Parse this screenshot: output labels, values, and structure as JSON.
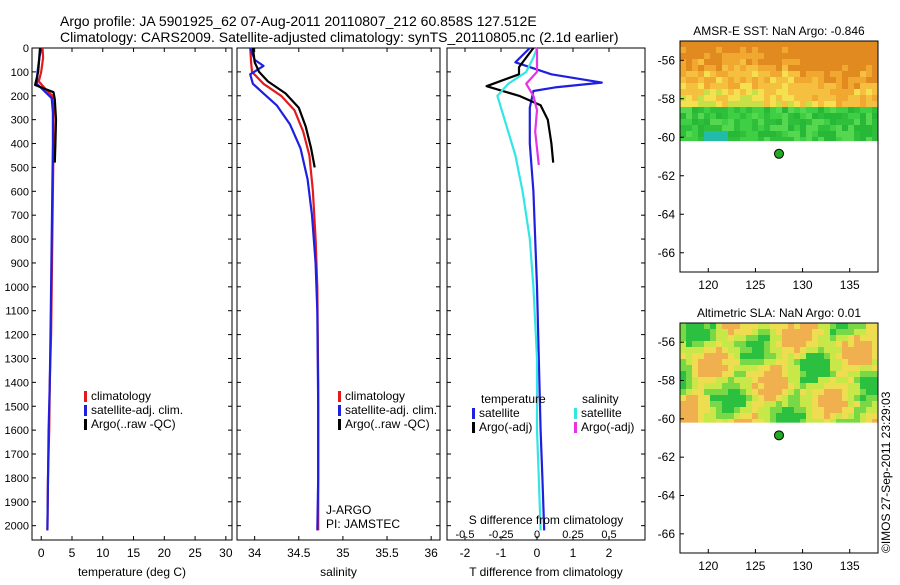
{
  "header": {
    "line1": "Argo profile: JA 5901925_62 07-Aug-2011 20110807_212 60.858S 127.512E",
    "line2": "Climatology: CARS2009. Satellite-adjusted climatology: synTS_20110805.nc (2.1d earlier)"
  },
  "credit": "©IMOS 27-Sep-2011 23:29:03",
  "colors": {
    "climatology": "#e41a1c",
    "satellite": "#1f1fe0",
    "argo": "#000000",
    "sal_satellite": "#33e6e6",
    "sal_argo": "#e633e6"
  },
  "depth_axis": {
    "ticks": [
      0,
      100,
      200,
      300,
      400,
      500,
      600,
      700,
      800,
      900,
      1000,
      1100,
      1200,
      1300,
      1400,
      1500,
      1600,
      1700,
      1800,
      1900,
      2000
    ],
    "range": [
      0,
      2060
    ]
  },
  "chart_data": [
    {
      "id": "temperature",
      "type": "line",
      "xlabel": "temperature (deg C)",
      "xlim": [
        -1.5,
        31
      ],
      "xticks": [
        0,
        5,
        10,
        15,
        20,
        25,
        30
      ],
      "legend": [
        "climatology",
        "satellite-adj. clim.",
        "Argo(..raw -QC)"
      ],
      "series": [
        {
          "name": "climatology",
          "color": "#e41a1c",
          "points": [
            [
              0.2,
              0
            ],
            [
              0.3,
              40
            ],
            [
              0.0,
              100
            ],
            [
              -0.4,
              140
            ],
            [
              0.8,
              175
            ],
            [
              1.8,
              200
            ],
            [
              2.0,
              260
            ],
            [
              2.0,
              400
            ],
            [
              1.9,
              600
            ],
            [
              1.8,
              800
            ],
            [
              1.7,
              1000
            ],
            [
              1.6,
              1200
            ],
            [
              1.4,
              1400
            ],
            [
              1.3,
              1600
            ],
            [
              1.1,
              1800
            ],
            [
              1.0,
              2020
            ]
          ]
        },
        {
          "name": "satellite-adj. clim.",
          "color": "#1f1fe0",
          "points": [
            [
              0.0,
              0
            ],
            [
              -0.3,
              40
            ],
            [
              -0.6,
              100
            ],
            [
              -0.7,
              150
            ],
            [
              0.5,
              180
            ],
            [
              1.7,
              210
            ],
            [
              1.9,
              270
            ],
            [
              1.9,
              400
            ],
            [
              1.8,
              600
            ],
            [
              1.7,
              800
            ],
            [
              1.6,
              1000
            ],
            [
              1.5,
              1200
            ],
            [
              1.4,
              1400
            ],
            [
              1.2,
              1600
            ],
            [
              1.1,
              1800
            ],
            [
              1.0,
              2020
            ]
          ]
        },
        {
          "name": "Argo(..raw -QC)",
          "color": "#000000",
          "points": [
            [
              -0.2,
              0
            ],
            [
              -0.5,
              100
            ],
            [
              -1.0,
              155
            ],
            [
              0.5,
              170
            ],
            [
              2.0,
              185
            ],
            [
              2.2,
              215
            ],
            [
              2.4,
              300
            ],
            [
              2.3,
              400
            ],
            [
              2.2,
              480
            ]
          ]
        }
      ]
    },
    {
      "id": "salinity",
      "type": "line",
      "xlabel": "salinity",
      "xlim": [
        33.8,
        36.1
      ],
      "xticks": [
        34,
        34.5,
        35,
        35.5,
        36
      ],
      "legend": [
        "climatology",
        "satellite-adj. clim.",
        "Argo(..raw -QC)"
      ],
      "annotations": [
        "J-ARGO",
        "PI: JAMSTEC"
      ],
      "series": [
        {
          "name": "climatology",
          "color": "#e41a1c",
          "points": [
            [
              33.95,
              0
            ],
            [
              33.96,
              60
            ],
            [
              33.97,
              100
            ],
            [
              34.1,
              150
            ],
            [
              34.3,
              200
            ],
            [
              34.45,
              260
            ],
            [
              34.55,
              350
            ],
            [
              34.62,
              450
            ],
            [
              34.66,
              600
            ],
            [
              34.69,
              800
            ],
            [
              34.71,
              1000
            ],
            [
              34.72,
              1400
            ],
            [
              34.72,
              1800
            ],
            [
              34.72,
              2020
            ]
          ]
        },
        {
          "name": "satellite-adj. clim.",
          "color": "#1f1fe0",
          "points": [
            [
              33.95,
              0
            ],
            [
              34.0,
              50
            ],
            [
              34.1,
              75
            ],
            [
              33.95,
              110
            ],
            [
              33.98,
              150
            ],
            [
              34.1,
              190
            ],
            [
              34.25,
              240
            ],
            [
              34.4,
              320
            ],
            [
              34.52,
              420
            ],
            [
              34.6,
              550
            ],
            [
              34.65,
              700
            ],
            [
              34.69,
              900
            ],
            [
              34.71,
              1100
            ],
            [
              34.72,
              1500
            ],
            [
              34.72,
              1800
            ],
            [
              34.71,
              2020
            ]
          ]
        },
        {
          "name": "Argo(..raw -QC)",
          "color": "#000000",
          "points": [
            [
              33.98,
              0
            ],
            [
              34.0,
              60
            ],
            [
              34.05,
              100
            ],
            [
              34.15,
              140
            ],
            [
              34.35,
              190
            ],
            [
              34.5,
              250
            ],
            [
              34.58,
              330
            ],
            [
              34.64,
              420
            ],
            [
              34.68,
              500
            ]
          ]
        }
      ]
    },
    {
      "id": "difference",
      "type": "line",
      "xlabel": "T difference from climatology",
      "xlabel_top": "S difference from climatology",
      "xlim": [
        -2.5,
        3
      ],
      "xticks": [
        -2,
        -1,
        0,
        1,
        2
      ],
      "xticks_top": [
        -0.5,
        -0.25,
        0,
        0.25,
        0.5
      ],
      "legend_temperature": [
        "temperature",
        "satellite",
        "Argo(-adj)"
      ],
      "legend_salinity": [
        "salinity",
        "satellite",
        "Argo(-adj)"
      ],
      "series": [
        {
          "name": "temperature satellite",
          "color": "#1f1fe0",
          "points": [
            [
              -0.2,
              0
            ],
            [
              -0.6,
              60
            ],
            [
              0.4,
              110
            ],
            [
              1.8,
              145
            ],
            [
              0.5,
              165
            ],
            [
              -0.1,
              180
            ],
            [
              -0.2,
              250
            ],
            [
              -0.2,
              400
            ],
            [
              -0.1,
              600
            ],
            [
              -0.05,
              800
            ],
            [
              0,
              1000
            ],
            [
              0.05,
              1300
            ],
            [
              0.1,
              1600
            ],
            [
              0.15,
              1800
            ],
            [
              0.2,
              2020
            ]
          ]
        },
        {
          "name": "temperature Argo(-adj)",
          "color": "#000000",
          "points": [
            [
              -0.1,
              0
            ],
            [
              -0.5,
              80
            ],
            [
              -0.5,
              110
            ],
            [
              -1.4,
              160
            ],
            [
              -0.5,
              200
            ],
            [
              0.1,
              240
            ],
            [
              0.3,
              300
            ],
            [
              0.4,
              400
            ],
            [
              0.45,
              480
            ]
          ]
        },
        {
          "name": "salinity satellite",
          "color": "#33e6e6",
          "points": [
            [
              0.0,
              0
            ],
            [
              -0.1,
              40
            ],
            [
              -0.3,
              100
            ],
            [
              -0.8,
              150
            ],
            [
              -1.1,
              200
            ],
            [
              -0.9,
              300
            ],
            [
              -0.6,
              450
            ],
            [
              -0.4,
              600
            ],
            [
              -0.2,
              800
            ],
            [
              -0.1,
              1000
            ],
            [
              0,
              1300
            ],
            [
              0,
              1600
            ],
            [
              0.05,
              1800
            ],
            [
              0.1,
              2020
            ]
          ]
        },
        {
          "name": "salinity Argo(-adj)",
          "color": "#e633e6",
          "points": [
            [
              0.0,
              0
            ],
            [
              0.0,
              100
            ],
            [
              -0.3,
              150
            ],
            [
              -0.1,
              200
            ],
            [
              0.0,
              260
            ],
            [
              -0.05,
              350
            ],
            [
              0.0,
              420
            ],
            [
              0.05,
              490
            ]
          ]
        }
      ]
    },
    {
      "id": "sst_map",
      "type": "heatmap",
      "title": "AMSR-E SST: NaN Argo: -0.846",
      "xticks": [
        120,
        125,
        130,
        135
      ],
      "yticks": [
        -56,
        -58,
        -60,
        -62,
        -64,
        -66
      ],
      "xlim": [
        117,
        138
      ],
      "ylim": [
        -67,
        -55
      ],
      "marker": {
        "lon": 127.5,
        "lat": -60.86
      },
      "data_extent_lat": [
        -60.2,
        -55
      ]
    },
    {
      "id": "sla_map",
      "type": "heatmap",
      "title": "Altimetric SLA: NaN Argo: 0.01",
      "xticks": [
        120,
        125,
        130,
        135
      ],
      "yticks": [
        -56,
        -58,
        -60,
        -62,
        -64,
        -66
      ],
      "xlim": [
        117,
        138
      ],
      "ylim": [
        -67,
        -55
      ],
      "marker": {
        "lon": 127.5,
        "lat": -60.86
      },
      "data_extent_lat": [
        -60.2,
        -55
      ]
    }
  ]
}
